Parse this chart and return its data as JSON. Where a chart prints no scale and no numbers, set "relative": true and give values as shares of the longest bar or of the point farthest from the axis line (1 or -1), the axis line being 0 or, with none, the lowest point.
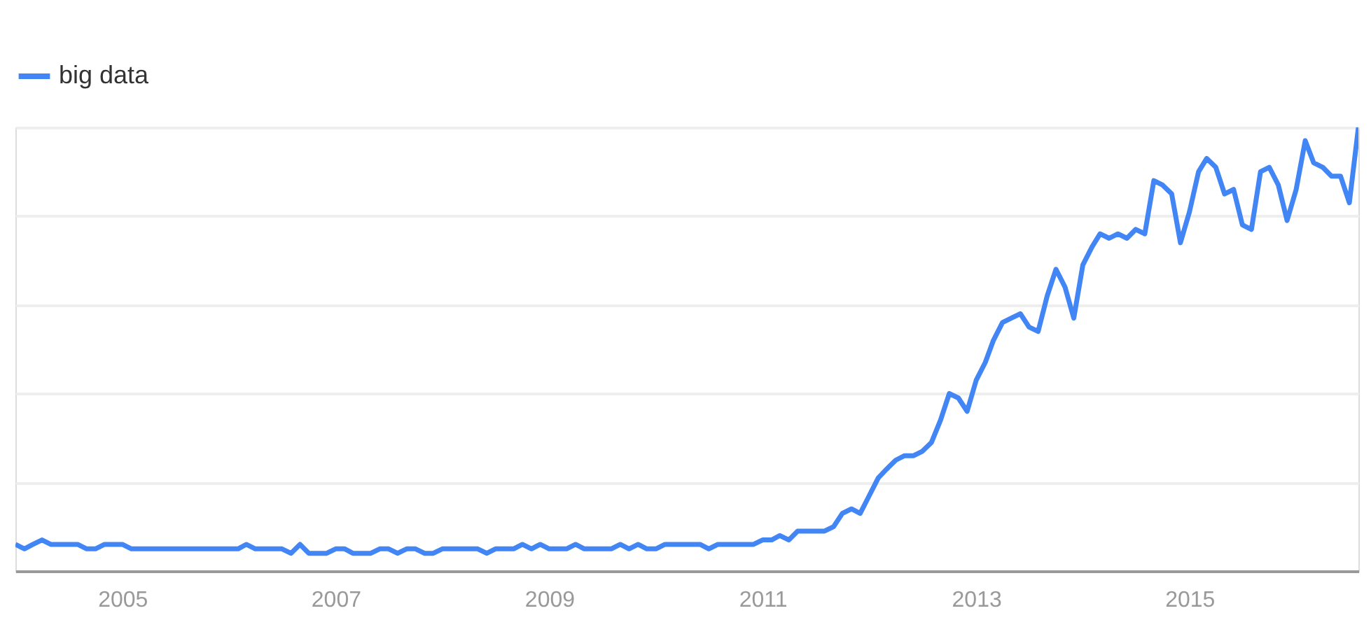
{
  "chart_data": {
    "type": "line",
    "relative": true,
    "grid": "y",
    "legend": "top left",
    "line_style": "solid",
    "marker": "none",
    "x": [
      "2004-01",
      "2004-02",
      "2004-03",
      "2004-04",
      "2004-05",
      "2004-06",
      "2004-07",
      "2004-08",
      "2004-09",
      "2004-10",
      "2004-11",
      "2004-12",
      "2005-01",
      "2005-02",
      "2005-03",
      "2005-04",
      "2005-05",
      "2005-06",
      "2005-07",
      "2005-08",
      "2005-09",
      "2005-10",
      "2005-11",
      "2005-12",
      "2006-01",
      "2006-02",
      "2006-03",
      "2006-04",
      "2006-05",
      "2006-06",
      "2006-07",
      "2006-08",
      "2006-09",
      "2006-10",
      "2006-11",
      "2006-12",
      "2007-01",
      "2007-02",
      "2007-03",
      "2007-04",
      "2007-05",
      "2007-06",
      "2007-07",
      "2007-08",
      "2007-09",
      "2007-10",
      "2007-11",
      "2007-12",
      "2008-01",
      "2008-02",
      "2008-03",
      "2008-04",
      "2008-05",
      "2008-06",
      "2008-07",
      "2008-08",
      "2008-09",
      "2008-10",
      "2008-11",
      "2008-12",
      "2009-01",
      "2009-02",
      "2009-03",
      "2009-04",
      "2009-05",
      "2009-06",
      "2009-07",
      "2009-08",
      "2009-09",
      "2009-10",
      "2009-11",
      "2009-12",
      "2010-01",
      "2010-02",
      "2010-03",
      "2010-04",
      "2010-05",
      "2010-06",
      "2010-07",
      "2010-08",
      "2010-09",
      "2010-10",
      "2010-11",
      "2010-12",
      "2011-01",
      "2011-02",
      "2011-03",
      "2011-04",
      "2011-05",
      "2011-06",
      "2011-07",
      "2011-08",
      "2011-09",
      "2011-10",
      "2011-11",
      "2011-12",
      "2012-01",
      "2012-02",
      "2012-03",
      "2012-04",
      "2012-05",
      "2012-06",
      "2012-07",
      "2012-08",
      "2012-09",
      "2012-10",
      "2012-11",
      "2012-12",
      "2013-01",
      "2013-02",
      "2013-03",
      "2013-04",
      "2013-05",
      "2013-06",
      "2013-07",
      "2013-08",
      "2013-09",
      "2013-10",
      "2013-11",
      "2013-12",
      "2014-01",
      "2014-02",
      "2014-03",
      "2014-04",
      "2014-05",
      "2014-06",
      "2014-07",
      "2014-08",
      "2014-09",
      "2014-10",
      "2014-11",
      "2014-12",
      "2015-01",
      "2015-02",
      "2015-03",
      "2015-04",
      "2015-05",
      "2015-06",
      "2015-07",
      "2015-08",
      "2015-09",
      "2015-10",
      "2015-11",
      "2015-12",
      "2016-01",
      "2016-02",
      "2016-03",
      "2016-04",
      "2016-05",
      "2016-06",
      "2016-07",
      "2016-08"
    ],
    "xlim": [
      "2004-01",
      "2016-08"
    ],
    "xticks": [
      "2005",
      "2007",
      "2009",
      "2011",
      "2013",
      "2015"
    ],
    "series": [
      {
        "name": "big data",
        "color": "#4285f4",
        "values": [
          0.06,
          0.05,
          0.06,
          0.07,
          0.06,
          0.06,
          0.06,
          0.06,
          0.05,
          0.05,
          0.06,
          0.06,
          0.06,
          0.05,
          0.05,
          0.05,
          0.05,
          0.05,
          0.05,
          0.05,
          0.05,
          0.05,
          0.05,
          0.05,
          0.05,
          0.05,
          0.06,
          0.05,
          0.05,
          0.05,
          0.05,
          0.04,
          0.06,
          0.04,
          0.04,
          0.04,
          0.05,
          0.05,
          0.04,
          0.04,
          0.04,
          0.05,
          0.05,
          0.04,
          0.05,
          0.05,
          0.04,
          0.04,
          0.05,
          0.05,
          0.05,
          0.05,
          0.05,
          0.04,
          0.05,
          0.05,
          0.05,
          0.06,
          0.05,
          0.06,
          0.05,
          0.05,
          0.05,
          0.06,
          0.05,
          0.05,
          0.05,
          0.05,
          0.06,
          0.05,
          0.06,
          0.05,
          0.05,
          0.06,
          0.06,
          0.06,
          0.06,
          0.06,
          0.05,
          0.06,
          0.06,
          0.06,
          0.06,
          0.06,
          0.07,
          0.07,
          0.08,
          0.07,
          0.09,
          0.09,
          0.09,
          0.09,
          0.1,
          0.13,
          0.14,
          0.13,
          0.17,
          0.21,
          0.23,
          0.25,
          0.26,
          0.26,
          0.27,
          0.29,
          0.34,
          0.4,
          0.39,
          0.36,
          0.43,
          0.47,
          0.52,
          0.56,
          0.57,
          0.58,
          0.55,
          0.54,
          0.62,
          0.68,
          0.64,
          0.57,
          0.69,
          0.73,
          0.76,
          0.75,
          0.76,
          0.75,
          0.77,
          0.76,
          0.88,
          0.87,
          0.85,
          0.74,
          0.81,
          0.9,
          0.93,
          0.91,
          0.85,
          0.86,
          0.78,
          0.77,
          0.9,
          0.91,
          0.87,
          0.79,
          0.86,
          0.97,
          0.92,
          0.91,
          0.89,
          0.89,
          0.83,
          1.0
        ]
      }
    ]
  }
}
